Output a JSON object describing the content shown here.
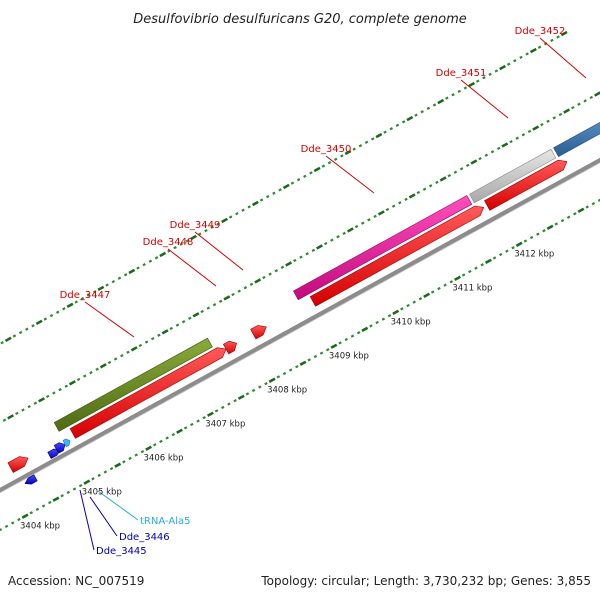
{
  "title": "Desulfovibrio desulfuricans G20, complete genome",
  "footer": {
    "accession": "Accession: NC_007519",
    "summary": "Topology: circular; Length: 3,730,232 bp; Genes: 3,855"
  },
  "colors": {
    "backbone": "#8c8c8c",
    "minor_tick": "#2e8b2e",
    "major_tick": "#1a6b1a",
    "cds_label": "#d60000",
    "trna_label": "#29a9e0",
    "blue_label": "#0000b0",
    "cds_red": "#ff1a1a",
    "olive": "#6e8f24",
    "magenta": "#e8129a",
    "grey": "#c8c8c8",
    "steel_blue": "#3b78b0",
    "dark_blue": "#1a1aee",
    "light_blue": "#3fb6f0"
  },
  "chart_data": {
    "type": "genome-map",
    "unit": "kbp",
    "scale_labels": [
      "3404 kbp",
      "3405 kbp",
      "3406 kbp",
      "3407 kbp",
      "3408 kbp",
      "3409 kbp",
      "3410 kbp",
      "3411 kbp",
      "3412 kbp"
    ],
    "scale_positions_kbp": [
      3404,
      3405,
      3406,
      3407,
      3408,
      3409,
      3410,
      3411,
      3412
    ],
    "features": [
      {
        "label": "Dde_3445",
        "label_color": "blue_label",
        "fill": "dark_blue"
      },
      {
        "label": "Dde_3446",
        "label_color": "blue_label",
        "fill": "dark_blue"
      },
      {
        "label": "tRNA-Ala5",
        "label_color": "trna_label",
        "fill": "light_blue"
      },
      {
        "label": "Dde_3447",
        "label_color": "cds_label",
        "fill": "olive"
      },
      {
        "label": "Dde_3448",
        "label_color": "cds_label",
        "fill": "cds_red"
      },
      {
        "label": "Dde_3449",
        "label_color": "cds_label",
        "fill": "cds_red"
      },
      {
        "label": "Dde_3450",
        "label_color": "cds_label",
        "fill": "magenta"
      },
      {
        "label": "Dde_3451",
        "label_color": "cds_label",
        "fill": "grey"
      },
      {
        "label": "Dde_3452",
        "label_color": "cds_label",
        "fill": "steel_blue"
      }
    ]
  }
}
